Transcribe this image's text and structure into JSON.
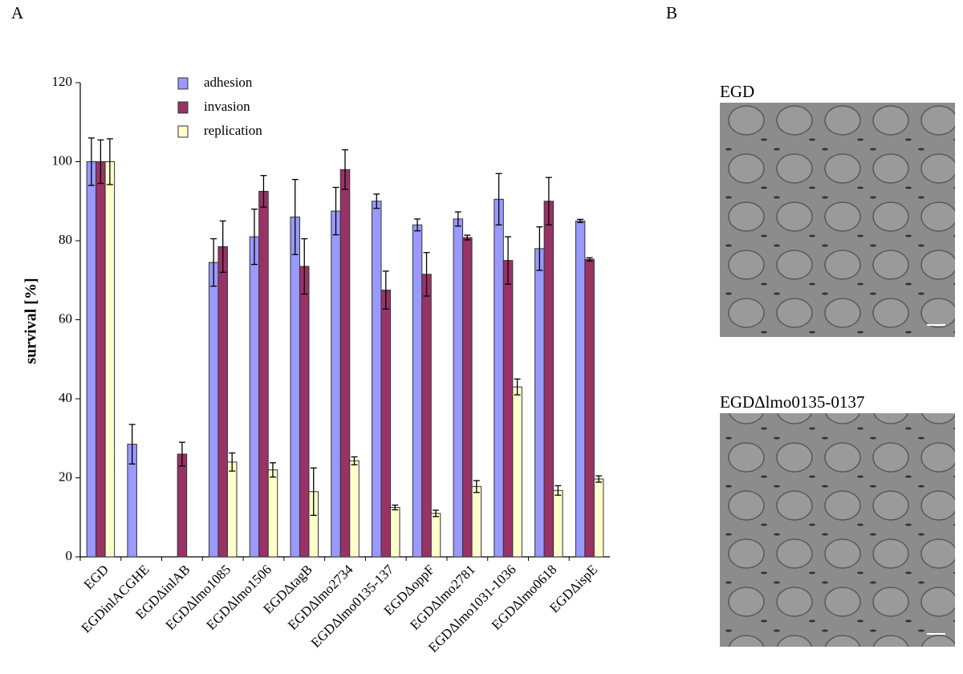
{
  "chart_data": {
    "type": "bar",
    "ylabel": "survival [%]",
    "categories": [
      "EGD",
      "EGDinlACGHE",
      "EGDΔinlAB",
      "EGDΔlmo1085",
      "EGDΔlmo1506",
      "EGDΔtagB",
      "EGDΔlmo2734",
      "EGDΔlmo0135-137",
      "EGDΔoppF",
      "EGDΔlmo2781",
      "EGDΔlmo1031-1036",
      "EGDΔlmo0618",
      "EGDΔispE"
    ],
    "series": [
      {
        "name": "adhesion",
        "color": "#9999ff",
        "values": [
          100,
          28.5,
          null,
          74.5,
          81,
          86,
          87.5,
          90,
          84,
          85.5,
          90.5,
          78,
          85
        ],
        "errors": [
          6,
          5,
          null,
          6,
          7,
          9.5,
          6,
          1.8,
          1.5,
          1.8,
          6.5,
          5.5,
          0.4
        ]
      },
      {
        "name": "invasion",
        "color": "#993366",
        "values": [
          100,
          null,
          26,
          78.5,
          92.5,
          73.5,
          98,
          67.5,
          71.5,
          80.8,
          75,
          90,
          75.3
        ],
        "errors": [
          5.5,
          null,
          3,
          6.5,
          4,
          7,
          5,
          4.8,
          5.5,
          0.6,
          6,
          6,
          0.4
        ]
      },
      {
        "name": "replication",
        "color": "#ffffcc",
        "values": [
          100,
          null,
          null,
          24,
          22,
          16.5,
          24.3,
          12.5,
          11,
          17.8,
          43,
          16.8,
          19.7
        ],
        "errors": [
          5.8,
          null,
          null,
          2.3,
          1.8,
          6,
          1,
          0.6,
          0.8,
          1.5,
          2,
          1.2,
          0.8
        ]
      }
    ],
    "ylim": [
      0,
      120
    ],
    "yticks": [
      0,
      20,
      40,
      60,
      80,
      100,
      120
    ],
    "grid": false,
    "legend": "top"
  },
  "panels": {
    "a_label": "A",
    "b_label": "B",
    "image_top_caption": "EGD",
    "image_bottom_caption": "EGDΔlmo0135-0137"
  }
}
